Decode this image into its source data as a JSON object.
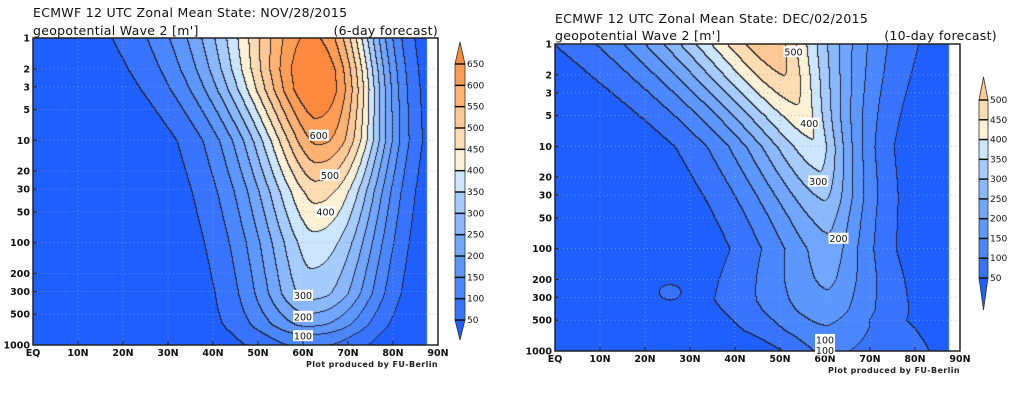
{
  "chart_data": [
    {
      "type": "contour",
      "title": "ECMWF 12 UTC Zonal Mean State: NOV/28/2015",
      "subtitle": "geopotential Wave 2 [m']",
      "note": "(6-day forecast)",
      "credit": "Plot produced by FU-Berlin",
      "x_ticks": [
        "EQ",
        "10N",
        "20N",
        "30N",
        "40N",
        "50N",
        "60N",
        "70N",
        "80N",
        "90N"
      ],
      "x_range": [
        0,
        90
      ],
      "y_ticks": [
        1,
        2,
        3,
        5,
        10,
        20,
        30,
        50,
        100,
        200,
        300,
        500,
        1000
      ],
      "y_range": [
        1,
        1000
      ],
      "y_scale": "log",
      "y_inverted": true,
      "grid": true,
      "levels": [
        50,
        100,
        150,
        200,
        250,
        300,
        350,
        400,
        450,
        500,
        550,
        600,
        650
      ],
      "colors": [
        "#1f5fff",
        "#3773ff",
        "#4a86ff",
        "#5c96ff",
        "#70a6ff",
        "#89b8ff",
        "#a6ccff",
        "#cde6ff",
        "#fff1d6",
        "#ffddb3",
        "#ffc894",
        "#ffb272",
        "#ff9c55",
        "#ff8a3d"
      ],
      "colorbar_labels": [
        "50",
        "100",
        "150",
        "200",
        "250",
        "300",
        "350",
        "400",
        "450",
        "500",
        "550",
        "600",
        "650"
      ],
      "contour_labels": [
        {
          "text": "600",
          "lat": 63.5,
          "p": 9
        },
        {
          "text": "500",
          "lat": 66,
          "p": 22
        },
        {
          "text": "400",
          "lat": 65,
          "p": 50
        },
        {
          "text": "300",
          "lat": 60,
          "p": 330
        },
        {
          "text": "200",
          "lat": 60,
          "p": 530
        },
        {
          "text": "100",
          "lat": 60,
          "p": 820
        }
      ]
    },
    {
      "type": "contour",
      "title": "ECMWF 12 UTC Zonal Mean State: DEC/02/2015",
      "subtitle": "geopotential Wave 2 [m']",
      "note": "(10-day forecast)",
      "credit": "Plot produced by FU-Berlin",
      "x_ticks": [
        "EQ",
        "10N",
        "20N",
        "30N",
        "40N",
        "50N",
        "60N",
        "70N",
        "80N",
        "90N"
      ],
      "x_range": [
        0,
        90
      ],
      "y_ticks": [
        1,
        2,
        3,
        5,
        10,
        20,
        30,
        50,
        100,
        200,
        300,
        500,
        1000
      ],
      "y_range": [
        1,
        1000
      ],
      "y_scale": "log",
      "y_inverted": true,
      "grid": true,
      "levels": [
        50,
        100,
        150,
        200,
        250,
        300,
        350,
        400,
        450,
        500
      ],
      "colors": [
        "#1f5fff",
        "#3773ff",
        "#4a86ff",
        "#5c96ff",
        "#70a6ff",
        "#89b8ff",
        "#a6ccff",
        "#cde6ff",
        "#fff1d6",
        "#ffddb3",
        "#ffc894"
      ],
      "colorbar_labels": [
        "50",
        "100",
        "150",
        "200",
        "250",
        "300",
        "350",
        "400",
        "450",
        "500"
      ],
      "contour_labels": [
        {
          "text": "500",
          "lat": 53,
          "p": 1.2
        },
        {
          "text": "400",
          "lat": 56.5,
          "p": 6
        },
        {
          "text": "300",
          "lat": 58.5,
          "p": 22
        },
        {
          "text": "200",
          "lat": 63,
          "p": 80
        },
        {
          "text": "100",
          "lat": 60,
          "p": 780
        },
        {
          "text": "100",
          "lat": 60,
          "p": 990
        }
      ]
    }
  ]
}
